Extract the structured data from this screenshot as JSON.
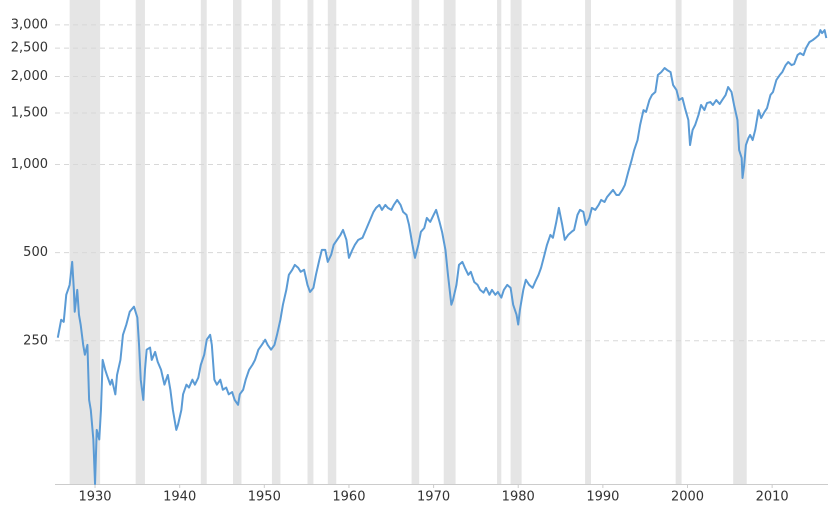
{
  "chart_data": {
    "type": "line",
    "log_scale": true,
    "grid": true,
    "xlim": [
      1925.27,
      2016.6
    ],
    "xticks": [
      1930,
      1940,
      1950,
      1960,
      1970,
      1980,
      1990,
      2000,
      2010
    ],
    "ylim": [
      81,
      3650
    ],
    "yticks": [
      250,
      500,
      {
        "value": 1000,
        "label": "1,000"
      },
      {
        "value": 1500,
        "label": "1,500"
      },
      {
        "value": 2000,
        "label": "2,000"
      },
      {
        "value": 2500,
        "label": "2,500"
      },
      {
        "value": 3000,
        "label": "3,000"
      }
    ],
    "shaded_ranges": [
      [
        1927.0,
        1930.6
      ],
      [
        1934.8,
        1935.9
      ],
      [
        1942.5,
        1943.2
      ],
      [
        1946.3,
        1947.3
      ],
      [
        1950.9,
        1951.9
      ],
      [
        1955.1,
        1955.8
      ],
      [
        1957.5,
        1958.5
      ],
      [
        1967.4,
        1968.3
      ],
      [
        1971.2,
        1972.6
      ],
      [
        1977.5,
        1978.0
      ],
      [
        1979.1,
        1980.4
      ],
      [
        1987.9,
        1988.6
      ],
      [
        1998.6,
        1999.3
      ],
      [
        2005.4,
        2007.0
      ]
    ],
    "shade_color": "#e5e5e5",
    "series": [
      {
        "color": "#5b9bd5",
        "x": [
          1925.6,
          1926.0,
          1926.3,
          1926.6,
          1926.8,
          1927.0,
          1927.3,
          1927.5,
          1927.6,
          1927.9,
          1928.1,
          1928.3,
          1928.6,
          1928.8,
          1929.1,
          1929.3,
          1929.5,
          1929.8,
          1930.0,
          1930.2,
          1930.5,
          1930.7,
          1930.9,
          1931.2,
          1931.4,
          1931.8,
          1932.0,
          1932.4,
          1932.6,
          1933.0,
          1933.3,
          1933.7,
          1934.1,
          1934.6,
          1935.0,
          1935.2,
          1935.4,
          1935.7,
          1935.9,
          1936.1,
          1936.5,
          1936.7,
          1937.1,
          1937.4,
          1937.8,
          1938.2,
          1938.4,
          1938.6,
          1938.9,
          1939.2,
          1939.6,
          1939.8,
          1940.2,
          1940.4,
          1940.8,
          1941.1,
          1941.5,
          1941.8,
          1942.2,
          1942.5,
          1942.9,
          1943.2,
          1943.6,
          1943.8,
          1944.1,
          1944.4,
          1944.8,
          1945.1,
          1945.5,
          1945.8,
          1946.2,
          1946.5,
          1946.9,
          1947.1,
          1947.5,
          1947.8,
          1948.2,
          1948.6,
          1948.9,
          1949.3,
          1949.7,
          1950.1,
          1950.4,
          1950.8,
          1951.2,
          1951.5,
          1951.9,
          1952.2,
          1952.6,
          1952.9,
          1953.3,
          1953.6,
          1954.0,
          1954.3,
          1954.7,
          1955.1,
          1955.4,
          1955.8,
          1956.1,
          1956.5,
          1956.8,
          1957.2,
          1957.5,
          1957.9,
          1958.2,
          1958.6,
          1959.0,
          1959.3,
          1959.7,
          1960.0,
          1960.4,
          1960.7,
          1961.1,
          1961.6,
          1962.0,
          1962.5,
          1962.9,
          1963.2,
          1963.6,
          1963.9,
          1964.3,
          1964.6,
          1965.0,
          1965.3,
          1965.7,
          1966.1,
          1966.4,
          1966.8,
          1967.1,
          1967.5,
          1967.8,
          1968.2,
          1968.5,
          1968.9,
          1969.2,
          1969.6,
          1970.0,
          1970.3,
          1970.7,
          1971.0,
          1971.4,
          1971.7,
          1972.1,
          1972.3,
          1972.7,
          1973.0,
          1973.4,
          1973.7,
          1974.1,
          1974.4,
          1974.8,
          1975.2,
          1975.5,
          1975.9,
          1976.2,
          1976.6,
          1976.9,
          1977.3,
          1977.6,
          1978.0,
          1978.3,
          1978.7,
          1979.1,
          1979.4,
          1979.8,
          1980.0,
          1980.2,
          1980.6,
          1980.9,
          1981.3,
          1981.7,
          1982.0,
          1982.4,
          1982.7,
          1983.1,
          1983.4,
          1983.8,
          1984.1,
          1984.5,
          1984.8,
          1985.2,
          1985.5,
          1985.9,
          1986.3,
          1986.6,
          1987.0,
          1987.3,
          1987.7,
          1988.0,
          1988.4,
          1988.7,
          1989.1,
          1989.5,
          1989.8,
          1990.2,
          1990.5,
          1990.9,
          1991.2,
          1991.6,
          1991.9,
          1992.3,
          1992.6,
          1993.0,
          1993.4,
          1993.7,
          1994.1,
          1994.4,
          1994.8,
          1995.1,
          1995.5,
          1995.8,
          1996.2,
          1996.5,
          1996.9,
          1997.3,
          1997.6,
          1998.0,
          1998.3,
          1998.7,
          1999.0,
          1999.4,
          1999.7,
          2000.1,
          2000.3,
          2000.6,
          2000.9,
          2001.3,
          2001.6,
          2002.0,
          2002.3,
          2002.7,
          2003.0,
          2003.4,
          2003.8,
          2004.1,
          2004.5,
          2004.8,
          2005.2,
          2005.5,
          2005.9,
          2006.1,
          2006.4,
          2006.5,
          2006.7,
          2006.9,
          2007.2,
          2007.4,
          2007.7,
          2008.0,
          2008.4,
          2008.7,
          2009.1,
          2009.4,
          2009.8,
          2010.1,
          2010.5,
          2010.9,
          2011.2,
          2011.6,
          2011.9,
          2012.3,
          2012.6,
          2013.0,
          2013.3,
          2013.7,
          2014.0,
          2014.4,
          2014.8,
          2015.1,
          2015.5,
          2015.7,
          2015.9,
          2016.2,
          2016.4
        ],
        "values": [
          256,
          295,
          290,
          359,
          373,
          388,
          465,
          373,
          314,
          373,
          307,
          284,
          242,
          224,
          242,
          157,
          145,
          115,
          81,
          124,
          115,
          145,
          215,
          199,
          191,
          177,
          184,
          164,
          191,
          215,
          262,
          284,
          314,
          327,
          300,
          242,
          184,
          157,
          199,
          233,
          237,
          215,
          229,
          212,
          199,
          177,
          184,
          191,
          170,
          145,
          124,
          129,
          145,
          164,
          177,
          173,
          184,
          177,
          187,
          207,
          224,
          252,
          262,
          242,
          184,
          177,
          184,
          170,
          173,
          164,
          167,
          157,
          151,
          164,
          170,
          184,
          199,
          207,
          215,
          233,
          242,
          252,
          242,
          233,
          242,
          262,
          295,
          332,
          373,
          420,
          437,
          454,
          444,
          430,
          437,
          388,
          367,
          379,
          420,
          472,
          511,
          511,
          465,
          492,
          532,
          553,
          575,
          598,
          553,
          480,
          511,
          532,
          553,
          562,
          598,
          647,
          689,
          711,
          728,
          700,
          728,
          711,
          700,
          728,
          757,
          728,
          689,
          673,
          622,
          532,
          480,
          532,
          589,
          607,
          657,
          637,
          673,
          700,
          637,
          589,
          511,
          420,
          332,
          345,
          388,
          454,
          465,
          444,
          420,
          430,
          397,
          388,
          373,
          365,
          379,
          359,
          373,
          359,
          367,
          351,
          373,
          388,
          379,
          332,
          307,
          284,
          319,
          373,
          404,
          388,
          379,
          397,
          420,
          444,
          492,
          532,
          575,
          562,
          637,
          711,
          622,
          553,
          575,
          589,
          598,
          673,
          700,
          689,
          622,
          657,
          711,
          700,
          728,
          757,
          745,
          775,
          800,
          819,
          787,
          787,
          819,
          852,
          943,
          1036,
          1121,
          1213,
          1365,
          1535,
          1513,
          1661,
          1728,
          1770,
          2023,
          2070,
          2137,
          2103,
          2070,
          1869,
          1797,
          1661,
          1688,
          1560,
          1420,
          1166,
          1312,
          1365,
          1477,
          1598,
          1535,
          1622,
          1635,
          1598,
          1661,
          1610,
          1661,
          1728,
          1840,
          1770,
          1598,
          1420,
          1121,
          1053,
          900,
          997,
          1166,
          1233,
          1262,
          1213,
          1312,
          1535,
          1442,
          1513,
          1560,
          1728,
          1770,
          1945,
          2023,
          2070,
          2187,
          2241,
          2187,
          2205,
          2366,
          2403,
          2366,
          2500,
          2620,
          2663,
          2705,
          2768,
          2880,
          2813,
          2880,
          2705
        ]
      }
    ]
  }
}
